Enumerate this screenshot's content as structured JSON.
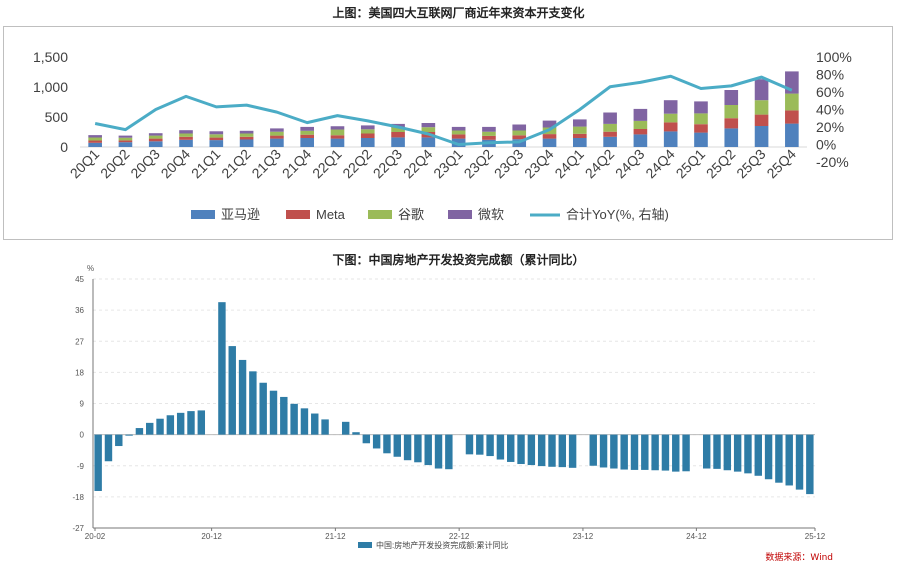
{
  "chart_data": [
    {
      "type": "bar",
      "stacked": true,
      "title": "上图：美国四大互联网厂商近年来资本开支变化",
      "categories": [
        "20Q1",
        "20Q2",
        "20Q3",
        "20Q4",
        "21Q1",
        "21Q2",
        "21Q3",
        "21Q4",
        "22Q1",
        "22Q2",
        "22Q3",
        "22Q4",
        "23Q1",
        "23Q2",
        "23Q3",
        "23Q4",
        "24Q1",
        "24Q2",
        "24Q3",
        "24Q4",
        "25Q1",
        "25Q2",
        "25Q3",
        "25Q4"
      ],
      "y_left_ticks": [
        "0",
        "500",
        "1,000",
        "1,500"
      ],
      "ylim_left": [
        0,
        1500
      ],
      "y_right_ticks": [
        "-20%",
        "0%",
        "20%",
        "40%",
        "60%",
        "80%",
        "100%"
      ],
      "ylim_right": [
        -20,
        100
      ],
      "series": [
        {
          "name": "亚马逊",
          "color": "#4f81bd",
          "values": [
            70,
            80,
            95,
            120,
            115,
            125,
            140,
            150,
            140,
            150,
            160,
            160,
            140,
            120,
            130,
            140,
            150,
            170,
            210,
            260,
            240,
            310,
            350,
            390
          ]
        },
        {
          "name": "Meta",
          "color": "#c0504d",
          "values": [
            38,
            30,
            45,
            50,
            42,
            45,
            50,
            55,
            56,
            75,
            90,
            90,
            70,
            65,
            65,
            75,
            70,
            85,
            90,
            150,
            140,
            170,
            190,
            220
          ]
        },
        {
          "name": "谷歌",
          "color": "#9bbb59",
          "values": [
            50,
            45,
            50,
            55,
            55,
            55,
            65,
            65,
            95,
            70,
            75,
            80,
            65,
            70,
            80,
            110,
            120,
            130,
            135,
            145,
            180,
            220,
            240,
            280
          ]
        },
        {
          "name": "微软",
          "color": "#8064a2",
          "values": [
            40,
            35,
            40,
            55,
            50,
            45,
            55,
            65,
            55,
            65,
            60,
            70,
            60,
            80,
            100,
            115,
            120,
            190,
            200,
            225,
            200,
            250,
            350,
            370
          ]
        }
      ],
      "line": {
        "name": "合计YoY(%, 右轴)",
        "color": "#4bacc6",
        "values": [
          24,
          17,
          40,
          55,
          43,
          45,
          37,
          25,
          33,
          27,
          20,
          12,
          0,
          2,
          3,
          17,
          40,
          66,
          71,
          78,
          64,
          67,
          77,
          62
        ]
      }
    },
    {
      "type": "bar",
      "title": "下图：中国房地产开发投资完成额（累计同比）",
      "unit": "%",
      "ylim": [
        -27,
        45
      ],
      "y_ticks": [
        "45",
        "36",
        "27",
        "18",
        "9",
        "0",
        "-9",
        "-18",
        "-27"
      ],
      "x_tick_labels": [
        "20-02",
        "20-12",
        "21-12",
        "22-12",
        "23-12",
        "24-12",
        "25-12"
      ],
      "series_name": "中国:房地产开发投资完成额:累计同比",
      "color": "#2e7ca6",
      "values": [
        -16.3,
        -7.7,
        -3.3,
        -0.3,
        1.9,
        3.4,
        4.6,
        5.6,
        6.3,
        6.8,
        7.0,
        null,
        38.3,
        25.6,
        21.6,
        18.3,
        15.0,
        12.7,
        10.9,
        8.9,
        7.6,
        6.1,
        4.4,
        null,
        3.7,
        0.7,
        -2.5,
        -4.0,
        -5.4,
        -6.4,
        -7.4,
        -8.0,
        -8.8,
        -9.8,
        -10.0,
        null,
        -5.7,
        -5.8,
        -6.2,
        -7.2,
        -7.9,
        -8.5,
        -8.8,
        -9.1,
        -9.3,
        -9.4,
        -9.6,
        null,
        -9.0,
        -9.5,
        -9.8,
        -10.1,
        -10.2,
        -10.2,
        -10.3,
        -10.4,
        -10.7,
        -10.6,
        null,
        -9.8,
        -9.9,
        -10.3,
        -10.7,
        -11.2,
        -11.9,
        -12.9,
        -13.9,
        -14.7,
        -15.9,
        -17.2
      ]
    }
  ],
  "source": "数据来源：Wind"
}
